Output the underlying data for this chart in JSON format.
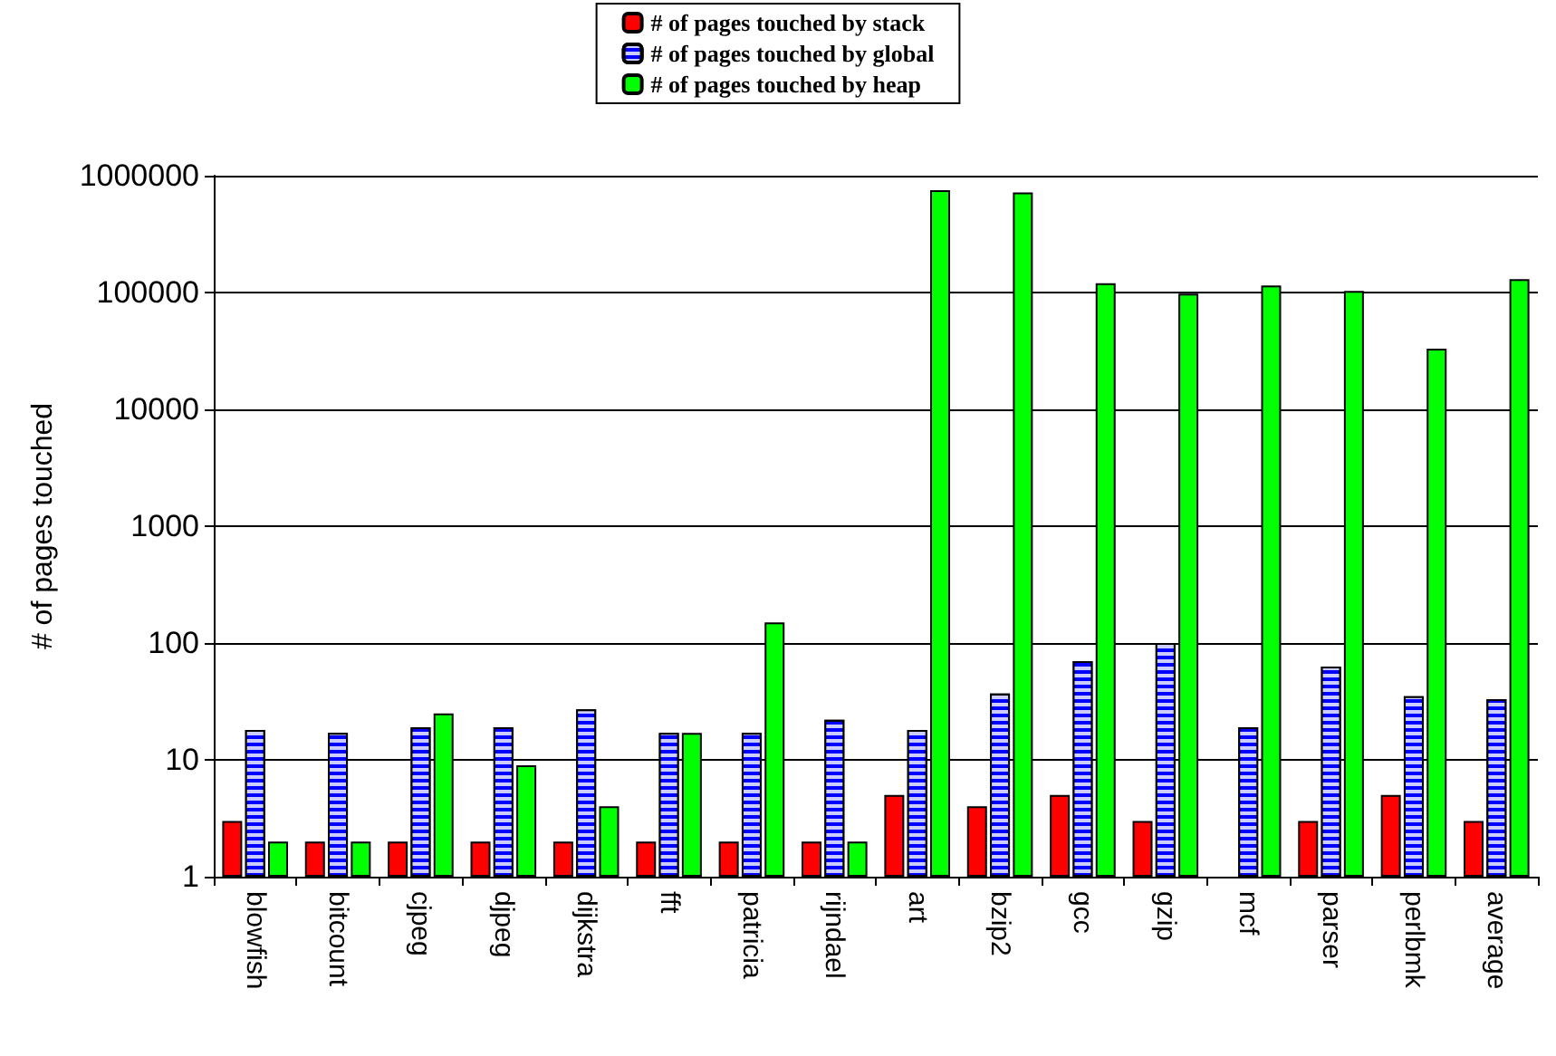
{
  "chart_data": {
    "type": "bar",
    "ylabel": "# of pages touched",
    "categories": [
      "blowfish",
      "bitcount",
      "cjpeg",
      "djpeg",
      "dijkstra",
      "fft",
      "patricia",
      "rijndael",
      "art",
      "bzip2",
      "gcc",
      "gzip",
      "mcf",
      "parser",
      "perlbmk",
      "average"
    ],
    "series": [
      {
        "name": "# of pages touched by stack",
        "color": "#ff0000",
        "values": [
          3,
          2,
          2,
          2,
          2,
          2,
          2,
          2,
          5,
          4,
          5,
          3,
          null,
          3,
          5,
          3
        ]
      },
      {
        "name": "# of pages touched by global",
        "color": "#0000ff",
        "values": [
          18,
          17,
          19,
          19,
          27,
          17,
          17,
          22,
          18,
          37,
          70,
          100,
          19,
          63,
          35,
          33
        ]
      },
      {
        "name": "# of pages touched by heap",
        "color": "#00ff00",
        "values": [
          2,
          2,
          25,
          9,
          4,
          17,
          150,
          2,
          750000,
          720000,
          120000,
          98000,
          115000,
          103000,
          33000,
          130000
        ]
      }
    ],
    "log": "y",
    "ylim": [
      1,
      1000000
    ],
    "yticks": [
      1,
      10,
      100,
      1000,
      10000,
      100000,
      1000000
    ],
    "grid": "y",
    "legend": "top"
  }
}
